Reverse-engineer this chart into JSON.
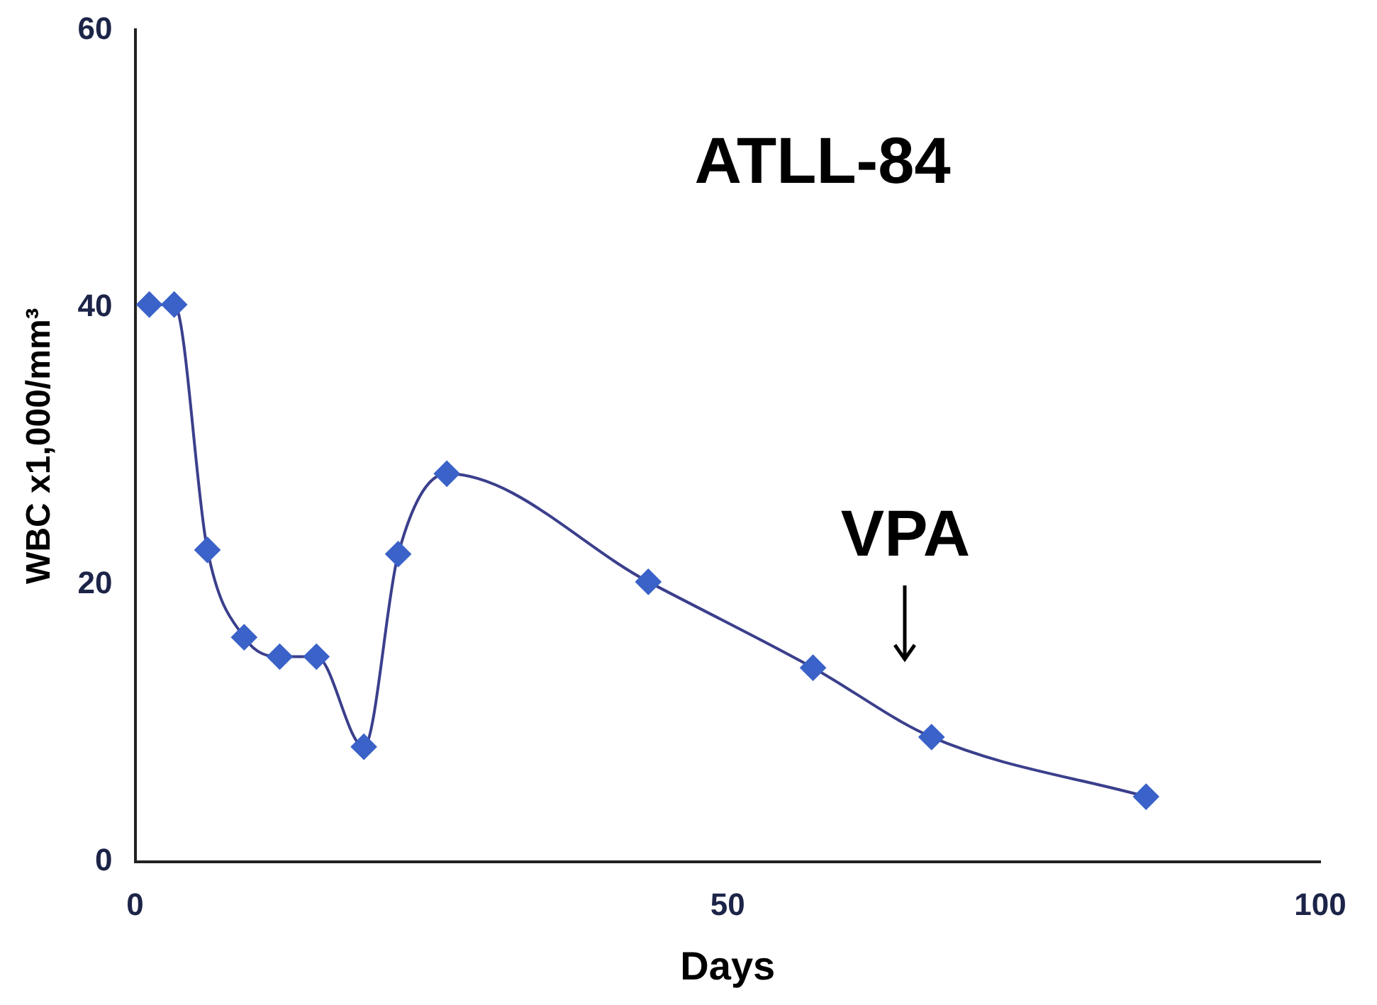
{
  "chart_data": {
    "type": "line",
    "title": "ATLL-84",
    "xlabel": "Days",
    "ylabel": "WBC x1,000/mm³",
    "x": [
      1.2,
      3.3,
      6.1,
      9.2,
      12.2,
      15.3,
      19.3,
      22.2,
      26.3,
      43.3,
      57.2,
      67.2,
      85.3
    ],
    "series": [
      {
        "color": "#3a62c8",
        "values": [
          40.2,
          40.2,
          22.5,
          16.2,
          14.8,
          14.8,
          8.3,
          22.2,
          28,
          20.2,
          14,
          9,
          4.7
        ]
      }
    ],
    "xlim": [
      0,
      100
    ],
    "xticks": [
      0,
      50,
      100
    ],
    "ylim": [
      0,
      60
    ],
    "yticks": [
      0,
      20,
      40,
      60
    ],
    "grid": false,
    "legend": false,
    "marker": "diamond",
    "line_style": "solid",
    "annotations": [
      "VPA"
    ]
  }
}
